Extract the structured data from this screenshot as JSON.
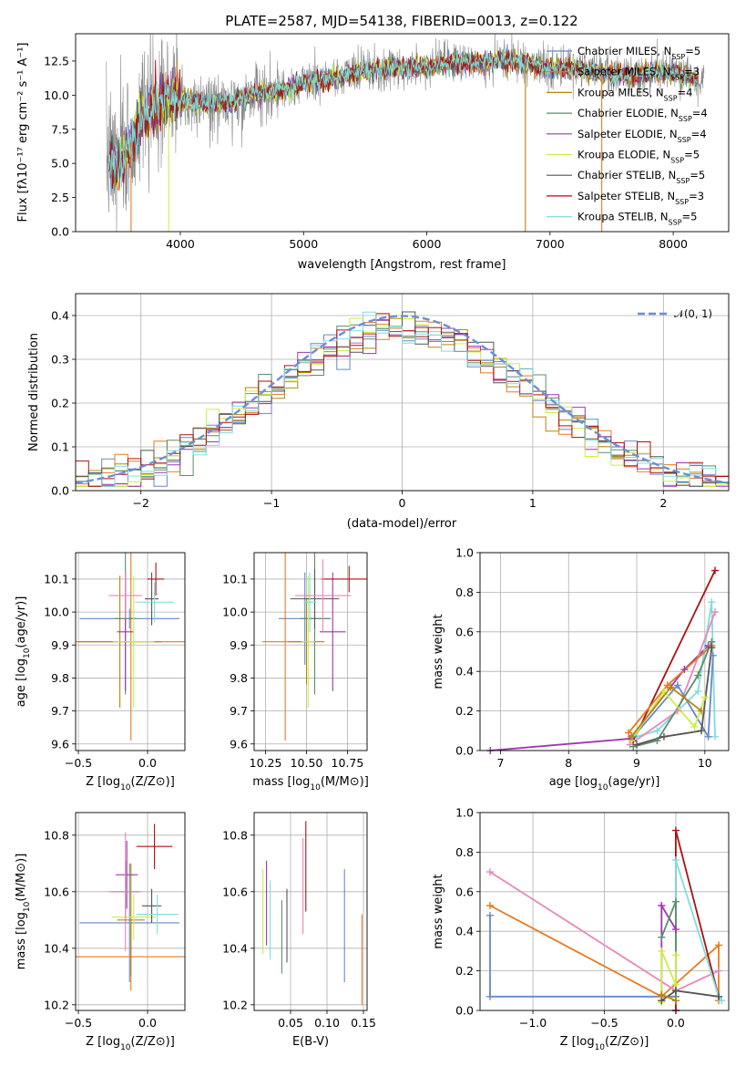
{
  "colors": {
    "c1": "#6688cc",
    "c2": "#e87a20",
    "c3": "#b8860b",
    "c4": "#5a8f6a",
    "c5": "#a035b0",
    "c6": "#ccee44",
    "c7": "#555555",
    "c8": "#aa1111",
    "c9": "#7fdddd",
    "c10": "#e888b8",
    "gray": "#888888",
    "grid": "#b0b0b0"
  },
  "chart_data": [
    {
      "id": "spectrum",
      "type": "line",
      "title": "PLATE=2587, MJD=54138, FIBERID=0013, z=0.122",
      "xlabel": "wavelength [Angstrom, rest frame]",
      "ylabel": "Flux [fλ10⁻¹⁷ erg cm⁻² s⁻¹ A⁻¹]",
      "xlim": [
        3150,
        8450
      ],
      "ylim": [
        0,
        14.5
      ],
      "xticks": [
        4000,
        5000,
        6000,
        7000,
        8000
      ],
      "yticks": [
        "0.0",
        "2.5",
        "5.0",
        "7.5",
        "10.0",
        "12.5"
      ],
      "grid": false,
      "legend": "top-right",
      "series": [
        {
          "name": "Chabrier MILES, N_SSP=5",
          "label_main": "Chabrier MILES, N",
          "label_sub": "SSP",
          "label_end": "=5"
        },
        {
          "name": "Salpeter MILES, N_SSP=3",
          "label_main": "Salpeter MILES, N",
          "label_sub": "SSP",
          "label_end": "=3"
        },
        {
          "name": "Kroupa MILES, N_SSP=4",
          "label_main": "Kroupa MILES, N",
          "label_sub": "SSP",
          "label_end": "=4"
        },
        {
          "name": "Chabrier ELODIE, N_SSP=4",
          "label_main": "Chabrier ELODIE, N",
          "label_sub": "SSP",
          "label_end": "=4"
        },
        {
          "name": "Salpeter ELODIE, N_SSP=4",
          "label_main": "Salpeter ELODIE, N",
          "label_sub": "SSP",
          "label_end": "=4"
        },
        {
          "name": "Kroupa ELODIE, N_SSP=5",
          "label_main": "Kroupa ELODIE, N",
          "label_sub": "SSP",
          "label_end": "=5"
        },
        {
          "name": "Chabrier STELIB, N_SSP=5",
          "label_main": "Chabrier STELIB, N",
          "label_sub": "SSP",
          "label_end": "=5"
        },
        {
          "name": "Salpeter STELIB, N_SSP=3",
          "label_main": "Salpeter STELIB, N",
          "label_sub": "SSP",
          "label_end": "=3"
        },
        {
          "name": "Kroupa STELIB, N_SSP=5",
          "label_main": "Kroupa STELIB, N",
          "label_sub": "SSP",
          "label_end": "=5"
        }
      ],
      "continuum": [
        [
          3400,
          5.4
        ],
        [
          3500,
          5.0
        ],
        [
          3600,
          6.5
        ],
        [
          3700,
          8.2
        ],
        [
          3800,
          9.3
        ],
        [
          3900,
          9.7
        ],
        [
          4000,
          9.6
        ],
        [
          4200,
          9.4
        ],
        [
          4400,
          9.5
        ],
        [
          4600,
          10.1
        ],
        [
          4800,
          10.4
        ],
        [
          5000,
          10.9
        ],
        [
          5200,
          11.2
        ],
        [
          5400,
          11.6
        ],
        [
          5600,
          11.9
        ],
        [
          5800,
          12.1
        ],
        [
          6000,
          12.0
        ],
        [
          6200,
          12.4
        ],
        [
          6400,
          12.4
        ],
        [
          6600,
          12.6
        ],
        [
          6800,
          12.4
        ],
        [
          7000,
          12.0
        ],
        [
          7200,
          11.9
        ],
        [
          7400,
          11.7
        ],
        [
          7600,
          11.4
        ],
        [
          7800,
          11.6
        ],
        [
          8000,
          11.7
        ],
        [
          8200,
          11.1
        ]
      ]
    },
    {
      "id": "residuals",
      "type": "line",
      "xlabel": "(data-model)/error",
      "ylabel": "Normed distribution",
      "xlim": [
        -2.5,
        2.5
      ],
      "ylim": [
        0,
        0.45
      ],
      "xticks": [
        "−2",
        "−1",
        "0",
        "1",
        "2"
      ],
      "yticks": [
        "0.0",
        "0.1",
        "0.2",
        "0.3",
        "0.4"
      ],
      "grid": true,
      "legend": "top-right",
      "legend_label": "𝒩(0, 1)",
      "bins": 50
    },
    {
      "id": "age-vs-z",
      "type": "scatter",
      "xlabel_main": "Z [log",
      "xlabel_sub": "10",
      "xlabel_end": "(Z/Z⊙)]",
      "ylabel_main": "age  [log",
      "ylabel_sub": "10",
      "ylabel_end": "(age/yr)]",
      "xlim": [
        -0.52,
        0.27
      ],
      "ylim": [
        9.58,
        10.18
      ],
      "xticks": [
        "−0.5",
        "0.0"
      ],
      "yticks": [
        "9.6",
        "9.7",
        "9.8",
        "9.9",
        "10.0",
        "10.1"
      ],
      "points": [
        {
          "x": -0.13,
          "y": 9.98,
          "xerr": 0.36,
          "yerr": 0.03,
          "c": "c1"
        },
        {
          "x": -0.12,
          "y": 9.91,
          "xerr": 0.44,
          "yerr": 0.3,
          "c": "c2"
        },
        {
          "x": -0.2,
          "y": 9.91,
          "xerr": 0.3,
          "yerr": 0.2,
          "c": "c3"
        },
        {
          "x": -0.16,
          "y": 9.98,
          "xerr": 0.08,
          "yerr": 0.23,
          "c": "c4"
        },
        {
          "x": -0.16,
          "y": 9.94,
          "xerr": 0.06,
          "yerr": 0.18,
          "c": "c5"
        },
        {
          "x": -0.1,
          "y": 9.91,
          "xerr": 0.15,
          "yerr": 0.2,
          "c": "c6"
        },
        {
          "x": 0.03,
          "y": 10.04,
          "xerr": 0.05,
          "yerr": 0.08,
          "c": "c7"
        },
        {
          "x": 0.06,
          "y": 10.1,
          "xerr": 0.06,
          "yerr": 0.05,
          "c": "c8"
        },
        {
          "x": 0.05,
          "y": 10.03,
          "xerr": 0.14,
          "yerr": 0.06,
          "c": "c9"
        },
        {
          "x": -0.16,
          "y": 10.05,
          "xerr": 0.12,
          "yerr": 0.07,
          "c": "c10"
        }
      ]
    },
    {
      "id": "age-vs-mass",
      "type": "scatter",
      "xlabel_main": "mass [log",
      "xlabel_sub": "10",
      "xlabel_end": "(M/M⊙)]",
      "xlim": [
        10.18,
        10.87
      ],
      "ylim": [
        9.58,
        10.18
      ],
      "xticks": [
        "10.25",
        "10.50",
        "10.75"
      ],
      "yticks": [
        "9.6",
        "9.7",
        "9.8",
        "9.9",
        "10.0",
        "10.1"
      ],
      "points": [
        {
          "x": 10.49,
          "y": 9.98,
          "xerr": 0.16,
          "yerr": 0.14,
          "c": "c1"
        },
        {
          "x": 10.37,
          "y": 9.91,
          "xerr": 0.14,
          "yerr": 0.3,
          "c": "c2"
        },
        {
          "x": 10.5,
          "y": 9.91,
          "xerr": 0.11,
          "yerr": 0.13,
          "c": "c3"
        },
        {
          "x": 10.55,
          "y": 9.98,
          "xerr": 0.09,
          "yerr": 0.23,
          "c": "c4"
        },
        {
          "x": 10.66,
          "y": 9.94,
          "xerr": 0.08,
          "yerr": 0.18,
          "c": "c5"
        },
        {
          "x": 10.51,
          "y": 9.91,
          "xerr": 0.04,
          "yerr": 0.2,
          "c": "c6"
        },
        {
          "x": 10.55,
          "y": 10.04,
          "xerr": 0.15,
          "yerr": 0.09,
          "c": "c7"
        },
        {
          "x": 10.76,
          "y": 10.1,
          "xerr": 0.17,
          "yerr": 0.04,
          "c": "c8"
        },
        {
          "x": 10.52,
          "y": 10.03,
          "xerr": 0.04,
          "yerr": 0.09,
          "c": "c9"
        },
        {
          "x": 10.6,
          "y": 10.05,
          "xerr": 0.17,
          "yerr": 0.11,
          "c": "c10"
        }
      ]
    },
    {
      "id": "weight-vs-age",
      "type": "line",
      "xlabel_main": "age  [log",
      "xlabel_sub": "10",
      "xlabel_end": "(age/yr)]",
      "ylabel": "mass weight",
      "xlim": [
        6.7,
        10.35
      ],
      "ylim": [
        0,
        1.0
      ],
      "xticks": [
        "7",
        "8",
        "9",
        "10"
      ],
      "yticks": [
        "0.0",
        "0.2",
        "0.4",
        "0.6",
        "0.8",
        "1.0"
      ],
      "grid": true,
      "series": [
        {
          "c": "c8",
          "x": [
            8.95,
            10.15
          ],
          "y": [
            0.05,
            0.91
          ]
        },
        {
          "c": "c5",
          "x": [
            6.85,
            8.9,
            9.7,
            10.05
          ],
          "y": [
            0.0,
            0.06,
            0.41,
            0.53
          ]
        },
        {
          "c": "c9",
          "x": [
            9.0,
            9.3,
            9.9,
            10.1,
            10.15
          ],
          "y": [
            0.07,
            0.1,
            0.3,
            0.75,
            0.07
          ]
        },
        {
          "c": "c10",
          "x": [
            8.9,
            9.6,
            10.15
          ],
          "y": [
            0.03,
            0.2,
            0.7
          ]
        },
        {
          "c": "c2",
          "x": [
            8.88,
            9.45,
            10.1
          ],
          "y": [
            0.09,
            0.33,
            0.53
          ]
        },
        {
          "c": "c1",
          "x": [
            8.95,
            9.6,
            10.05,
            10.12
          ],
          "y": [
            0.07,
            0.33,
            0.07,
            0.48
          ]
        },
        {
          "c": "c4",
          "x": [
            8.95,
            9.3,
            9.9,
            10.1
          ],
          "y": [
            0.02,
            0.05,
            0.38,
            0.55
          ]
        },
        {
          "c": "c6",
          "x": [
            8.92,
            9.4,
            9.85,
            10.0
          ],
          "y": [
            0.05,
            0.3,
            0.12,
            0.27
          ]
        },
        {
          "c": "c7",
          "x": [
            9.0,
            9.4,
            9.95,
            10.1
          ],
          "y": [
            0.03,
            0.07,
            0.1,
            0.52
          ]
        },
        {
          "c": "c3",
          "x": [
            8.92,
            9.5,
            9.95
          ],
          "y": [
            0.07,
            0.32,
            0.2
          ]
        }
      ]
    },
    {
      "id": "mass-vs-z",
      "type": "scatter",
      "xlabel_main": "Z [log",
      "xlabel_sub": "10",
      "xlabel_end": "(Z/Z⊙)]",
      "ylabel_main": "mass [log",
      "ylabel_sub": "10",
      "ylabel_end": "(M/M⊙)]",
      "xlim": [
        -0.52,
        0.27
      ],
      "ylim": [
        10.18,
        10.88
      ],
      "xticks": [
        "−0.5",
        "0.0"
      ],
      "yticks": [
        "10.2",
        "10.4",
        "10.6",
        "10.8"
      ],
      "points": [
        {
          "x": -0.13,
          "y": 10.49,
          "xerr": 0.36,
          "yerr": 0.21,
          "c": "c1"
        },
        {
          "x": -0.12,
          "y": 10.37,
          "xerr": 0.44,
          "yerr": 0.12,
          "c": "c2"
        },
        {
          "x": -0.12,
          "y": 10.5,
          "xerr": 0.1,
          "yerr": 0.2,
          "c": "c3"
        },
        {
          "x": -0.16,
          "y": 10.6,
          "xerr": 0.1,
          "yerr": 0.11,
          "c": "c4"
        },
        {
          "x": -0.15,
          "y": 10.66,
          "xerr": 0.08,
          "yerr": 0.12,
          "c": "c5"
        },
        {
          "x": -0.1,
          "y": 10.51,
          "xerr": 0.16,
          "yerr": 0.08,
          "c": "c6"
        },
        {
          "x": 0.03,
          "y": 10.55,
          "xerr": 0.07,
          "yerr": 0.06,
          "c": "c7"
        },
        {
          "x": 0.05,
          "y": 10.76,
          "xerr": 0.13,
          "yerr": 0.08,
          "c": "c8"
        },
        {
          "x": 0.07,
          "y": 10.52,
          "xerr": 0.15,
          "yerr": 0.07,
          "c": "c9"
        },
        {
          "x": -0.16,
          "y": 10.6,
          "xerr": 0.12,
          "yerr": 0.21,
          "c": "c10"
        }
      ]
    },
    {
      "id": "mass-vs-ebv",
      "type": "scatter",
      "xlabel": "E(B-V)",
      "xlim": [
        0.0,
        0.155
      ],
      "ylim": [
        10.18,
        10.88
      ],
      "xticks": [
        "0.05",
        "0.10",
        "0.15"
      ],
      "yticks": [
        "10.2",
        "10.4",
        "10.6",
        "10.8"
      ],
      "points": [
        {
          "x": 0.124,
          "y": 10.48,
          "yerr": 0.2,
          "c": "c1"
        },
        {
          "x": 0.148,
          "y": 10.36,
          "yerr": 0.16,
          "c": "c2"
        },
        {
          "x": 0.012,
          "y": 10.53,
          "yerr": 0.15,
          "c": "c6"
        },
        {
          "x": 0.017,
          "y": 10.56,
          "yerr": 0.15,
          "c": "c5"
        },
        {
          "x": 0.022,
          "y": 10.5,
          "yerr": 0.14,
          "c": "c9"
        },
        {
          "x": 0.038,
          "y": 10.44,
          "yerr": 0.13,
          "c": "c4"
        },
        {
          "x": 0.045,
          "y": 10.48,
          "yerr": 0.13,
          "c": "c7"
        },
        {
          "x": 0.067,
          "y": 10.62,
          "yerr": 0.17,
          "c": "c10"
        },
        {
          "x": 0.071,
          "y": 10.69,
          "yerr": 0.16,
          "c": "c8"
        }
      ]
    },
    {
      "id": "weight-vs-z",
      "type": "line",
      "xlabel_main": "Z [log",
      "xlabel_sub": "10",
      "xlabel_end": "(Z/Z⊙)]",
      "ylabel": "mass weight",
      "xlim": [
        -1.37,
        0.37
      ],
      "ylim": [
        0,
        1.0
      ],
      "xticks": [
        "−1.0",
        "−0.5",
        "0.0"
      ],
      "yticks": [
        "0.0",
        "0.2",
        "0.4",
        "0.6",
        "0.8",
        "1.0"
      ],
      "grid": true,
      "series": [
        {
          "c": "c1",
          "x": [
            -1.3,
            -1.3,
            0.0,
            0.0
          ],
          "y": [
            0.48,
            0.07,
            0.07,
            0.0
          ]
        },
        {
          "c": "c2",
          "x": [
            -1.3,
            -0.1,
            0.3,
            0.3
          ],
          "y": [
            0.53,
            0.07,
            0.33,
            0.05
          ]
        },
        {
          "c": "c10",
          "x": [
            -1.3,
            -0.0,
            0.3
          ],
          "y": [
            0.7,
            0.1,
            0.2
          ]
        },
        {
          "c": "c8",
          "x": [
            -0.0,
            0.0,
            0.3
          ],
          "y": [
            0.0,
            0.91,
            0.07
          ]
        },
        {
          "c": "c9",
          "x": [
            0.0,
            -0.0,
            0.3,
            0.32
          ],
          "y": [
            0.05,
            0.76,
            0.07,
            0.05
          ]
        },
        {
          "c": "c5",
          "x": [
            -0.1,
            -0.1,
            0.0
          ],
          "y": [
            0.05,
            0.53,
            0.41
          ]
        },
        {
          "c": "c4",
          "x": [
            -0.1,
            -0.0,
            0.0
          ],
          "y": [
            0.37,
            0.55,
            0.07
          ]
        },
        {
          "c": "c6",
          "x": [
            -0.1,
            -0.1,
            0.0,
            0.0
          ],
          "y": [
            0.04,
            0.3,
            0.13,
            0.28
          ]
        },
        {
          "c": "c7",
          "x": [
            -0.1,
            0.0,
            0.3
          ],
          "y": [
            0.05,
            0.1,
            0.07
          ]
        },
        {
          "c": "c3",
          "x": [
            -0.1,
            0.0
          ],
          "y": [
            0.08,
            0.05
          ]
        }
      ]
    }
  ]
}
